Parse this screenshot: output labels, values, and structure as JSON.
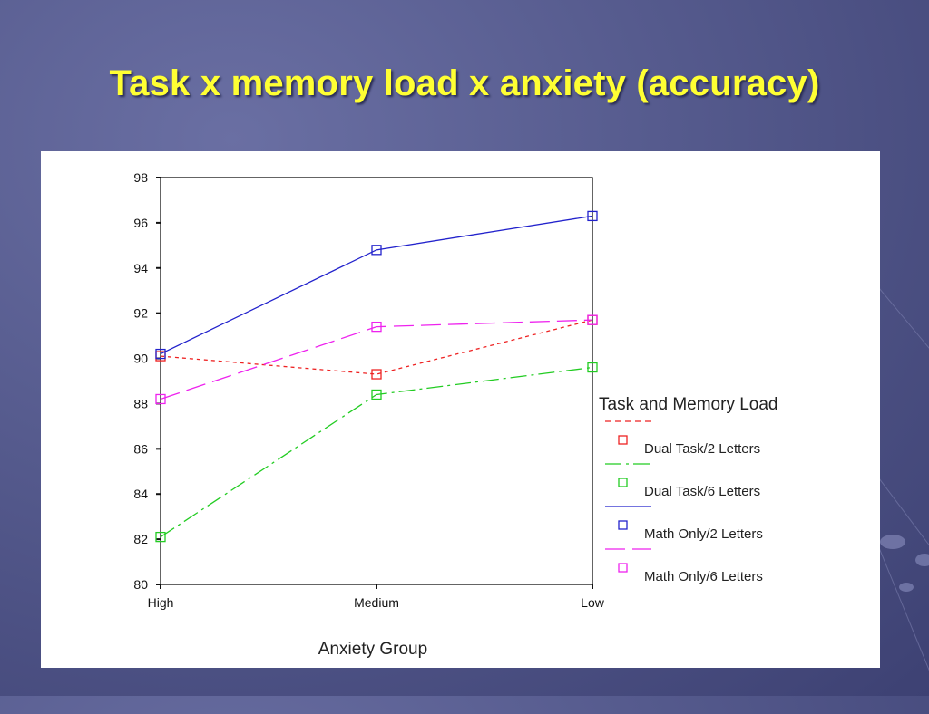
{
  "slide": {
    "title": "Task x memory load x anxiety (accuracy)"
  },
  "chart_data": {
    "type": "line",
    "x": [
      "High",
      "Medium",
      "Low"
    ],
    "xlabel": "Anxiety Group",
    "ylabel": "",
    "ylim": [
      80,
      98
    ],
    "yticks": [
      80,
      82,
      84,
      86,
      88,
      90,
      92,
      94,
      96,
      98
    ],
    "grid": false,
    "legend": {
      "title": "Task and Memory Load",
      "placement": "right"
    },
    "series": [
      {
        "name": "Dual Task/2 Letters",
        "values": [
          90.1,
          89.3,
          91.7
        ],
        "color": "#ee2222",
        "dash": "4,4"
      },
      {
        "name": "Dual Task/6 Letters",
        "values": [
          82.1,
          88.4,
          89.6
        ],
        "color": "#22cc22",
        "dash": "18,5,3,5"
      },
      {
        "name": "Math Only/2 Letters",
        "values": [
          90.2,
          94.8,
          96.3
        ],
        "color": "#2222cc",
        "dash": ""
      },
      {
        "name": "Math Only/6 Letters",
        "values": [
          88.2,
          91.4,
          91.7
        ],
        "color": "#ee22ee",
        "dash": "22,8"
      }
    ]
  }
}
